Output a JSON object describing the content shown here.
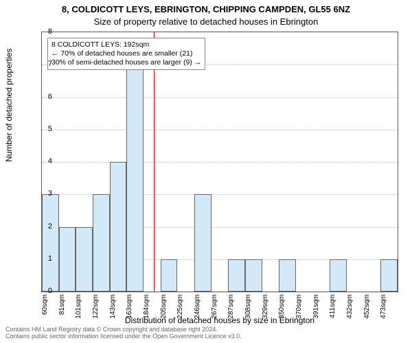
{
  "titles": {
    "line1": "8, COLDICOTT LEYS, EBRINGTON, CHIPPING CAMPDEN, GL55 6NZ",
    "line2": "Size of property relative to detached houses in Ebrington"
  },
  "yaxis": {
    "label": "Number of detached properties",
    "min": 0,
    "max": 8,
    "tick_step": 1
  },
  "xaxis": {
    "label": "Distribution of detached houses by size in Ebrington"
  },
  "histogram": {
    "type": "histogram",
    "bar_color": "#d3e9f7",
    "bar_border": "#666666",
    "background_color": "#ffffff",
    "grid_color": "#bbbbbb",
    "bin_width_sqm": 20.6,
    "x_min_sqm": 60,
    "x_max_sqm": 480,
    "categories": [
      "60sqm",
      "81sqm",
      "101sqm",
      "122sqm",
      "143sqm",
      "163sqm",
      "184sqm",
      "205sqm",
      "225sqm",
      "246sqm",
      "267sqm",
      "287sqm",
      "308sqm",
      "329sqm",
      "350sqm",
      "370sqm",
      "391sqm",
      "411sqm",
      "432sqm",
      "452sqm",
      "473sqm"
    ],
    "values": [
      3,
      2,
      2,
      3,
      4,
      7,
      0,
      1,
      0,
      3,
      0,
      1,
      1,
      0,
      1,
      0,
      0,
      1,
      0,
      0,
      1
    ]
  },
  "reference": {
    "sqm": 192,
    "line_color": "#d00000"
  },
  "annotation": {
    "line1": "8 COLDICOTT LEYS: 192sqm",
    "line2": "← 70% of detached houses are smaller (21)",
    "line3": "30% of semi-detached houses are larger (9) →"
  },
  "footer": {
    "line1": "Contains HM Land Registry data © Crown copyright and database right 2024.",
    "line2": "Contains public sector information licensed under the Open Government Licence v3.0."
  },
  "style": {
    "title_fontsize": 13,
    "axis_label_fontsize": 12,
    "tick_fontsize": 11,
    "xtick_fontsize": 10,
    "annotation_fontsize": 10.5,
    "footer_fontsize": 9
  }
}
